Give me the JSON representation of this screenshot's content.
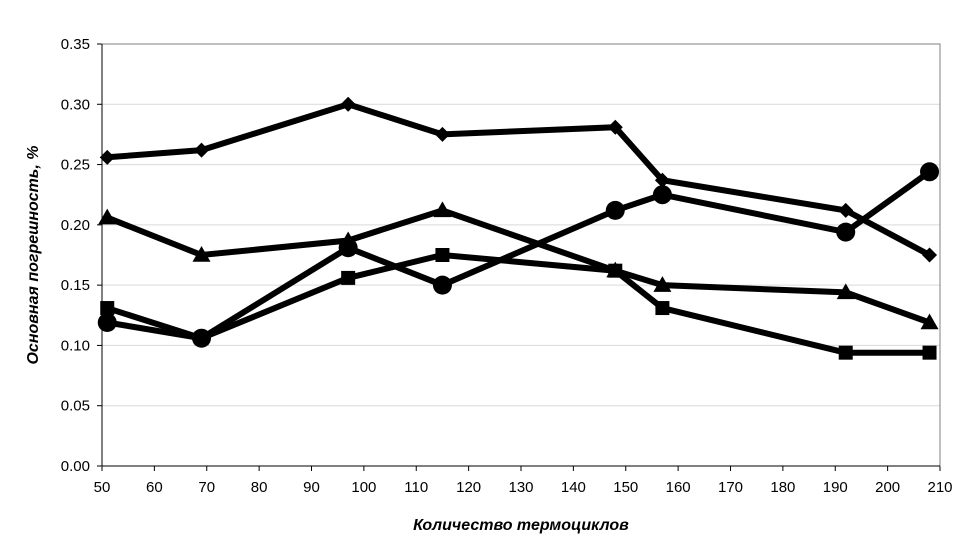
{
  "chart_data": {
    "type": "line",
    "xlabel": "Количество термоциклов",
    "ylabel": "Основная погрешность, %",
    "xlim": [
      50,
      210
    ],
    "ylim": [
      0,
      0.35
    ],
    "x_ticks": [
      "50",
      "60",
      "70",
      "80",
      "90",
      "100",
      "110",
      "120",
      "130",
      "140",
      "150",
      "160",
      "170",
      "180",
      "190",
      "200",
      "210"
    ],
    "y_ticks": [
      "0.00",
      "0.05",
      "0.10",
      "0.15",
      "0.20",
      "0.25",
      "0.30",
      "0.35"
    ],
    "grid": "horizontal",
    "line_color": "#000000",
    "series": [
      {
        "marker": "diamond",
        "points": [
          [
            51,
            0.256
          ],
          [
            69,
            0.262
          ],
          [
            97,
            0.3
          ],
          [
            115,
            0.275
          ],
          [
            148,
            0.281
          ],
          [
            157,
            0.237
          ],
          [
            192,
            0.212
          ],
          [
            208,
            0.175
          ]
        ]
      },
      {
        "marker": "square",
        "points": [
          [
            51,
            0.131
          ],
          [
            69,
            0.106
          ],
          [
            97,
            0.156
          ],
          [
            115,
            0.175
          ],
          [
            148,
            0.162
          ],
          [
            157,
            0.131
          ],
          [
            192,
            0.094
          ],
          [
            208,
            0.094
          ]
        ]
      },
      {
        "marker": "triangle",
        "points": [
          [
            51,
            0.206
          ],
          [
            69,
            0.175
          ],
          [
            97,
            0.187
          ],
          [
            115,
            0.212
          ],
          [
            148,
            0.162
          ],
          [
            157,
            0.15
          ],
          [
            192,
            0.144
          ],
          [
            208,
            0.119
          ]
        ]
      },
      {
        "marker": "circle",
        "points": [
          [
            51,
            0.119
          ],
          [
            69,
            0.106
          ],
          [
            97,
            0.181
          ],
          [
            115,
            0.15
          ],
          [
            148,
            0.212
          ],
          [
            157,
            0.225
          ],
          [
            192,
            0.194
          ],
          [
            208,
            0.244
          ]
        ]
      }
    ]
  }
}
